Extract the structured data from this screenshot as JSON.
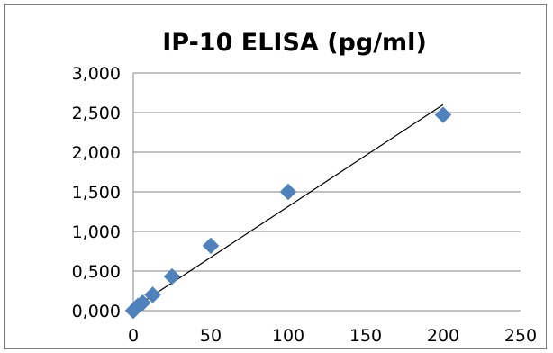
{
  "chart_data": {
    "type": "scatter",
    "title": "IP-10 ELISA (pg/ml)",
    "xlabel": "",
    "ylabel": "",
    "xlim": [
      0,
      250
    ],
    "ylim": [
      0,
      3
    ],
    "x_ticks": [
      "0",
      "50",
      "100",
      "150",
      "200",
      "250"
    ],
    "y_ticks": [
      "0,000",
      "0,500",
      "1,000",
      "1,500",
      "2,000",
      "2,500",
      "3,000"
    ],
    "grid": "horizontal",
    "legend": "none",
    "series": [
      {
        "points": [
          {
            "x": 0,
            "y": 0.0
          },
          {
            "x": 1.5,
            "y": 0.03
          },
          {
            "x": 3,
            "y": 0.06
          },
          {
            "x": 6,
            "y": 0.1
          },
          {
            "x": 12.5,
            "y": 0.2
          },
          {
            "x": 25,
            "y": 0.43
          },
          {
            "x": 50,
            "y": 0.82
          },
          {
            "x": 100,
            "y": 1.5
          },
          {
            "x": 200,
            "y": 2.47
          }
        ],
        "color": "#4f81bd",
        "marker": "diamond"
      }
    ],
    "trendline": {
      "type": "linear",
      "color": "#000000",
      "from": {
        "x": 0,
        "y": 0.03
      },
      "to": {
        "x": 200,
        "y": 2.6
      }
    }
  }
}
